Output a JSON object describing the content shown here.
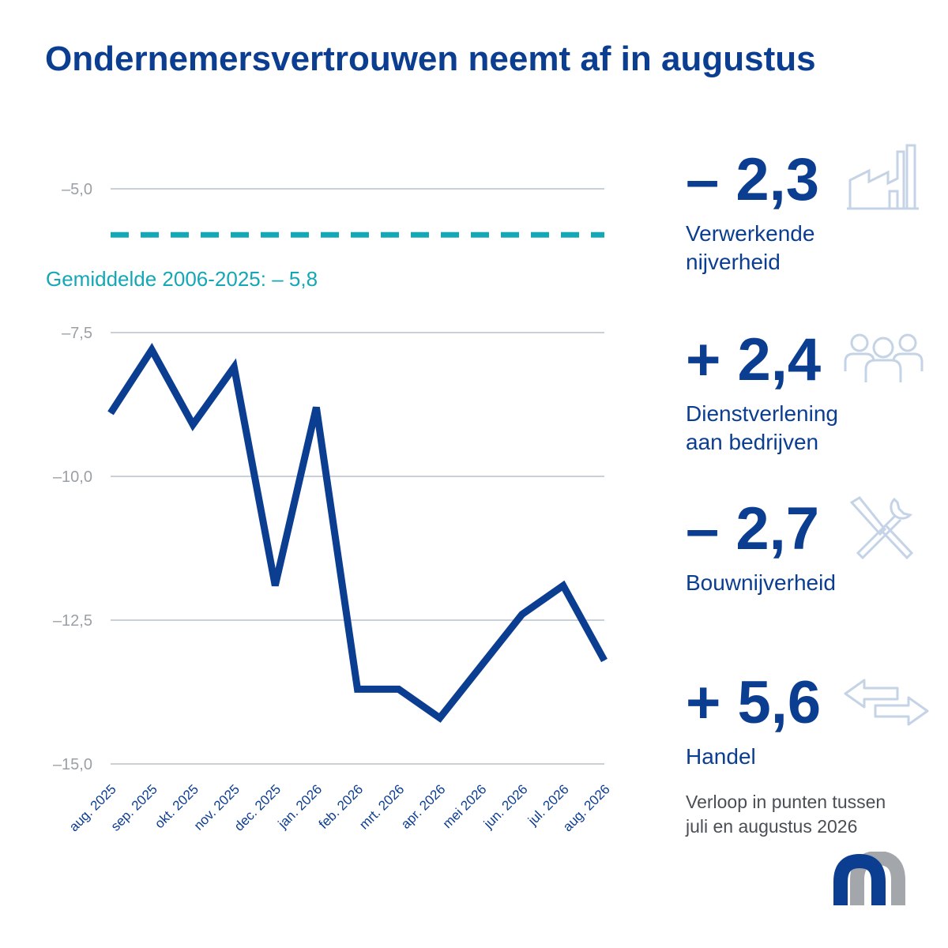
{
  "title": "Ondernemersvertrouwen neemt af in augustus",
  "colors": {
    "line": "#0b3d91",
    "average": "#14a7b6",
    "grid": "#c9d0d8",
    "icon": "#c5d3e6",
    "logo_blue": "#0b3d91",
    "logo_gray": "#a3a6aa"
  },
  "average": {
    "label": "Gemiddelde 2006-2025: – 5,8",
    "value": -5.8
  },
  "kpis": [
    {
      "value": "– 2,3",
      "label_lines": [
        "Verwerkende",
        "nijverheid"
      ],
      "icon": "factory-icon"
    },
    {
      "value": "+ 2,4",
      "label_lines": [
        "Dienstverlening",
        "aan bedrijven"
      ],
      "icon": "people-icon"
    },
    {
      "value": "– 2,7",
      "label_lines": [
        "Bouwnijverheid"
      ],
      "icon": "tools-icon"
    },
    {
      "value": "+ 5,6",
      "label_lines": [
        "Handel"
      ],
      "icon": "arrows-icon"
    }
  ],
  "footnote_lines": [
    "Verloop in punten tussen",
    "juli en augustus 2026"
  ],
  "chart_data": {
    "type": "line",
    "categories": [
      "aug. 2025",
      "sep. 2025",
      "okt. 2025",
      "nov. 2025",
      "dec. 2025",
      "jan. 2026",
      "feb. 2026",
      "mrt. 2026",
      "apr. 2026",
      "mei 2026",
      "jun. 2026",
      "jul. 2026",
      "aug. 2026"
    ],
    "series": [
      {
        "values": [
          -8.9,
          -7.8,
          -9.1,
          -8.1,
          -11.9,
          -8.8,
          -13.7,
          -13.7,
          -14.2,
          -13.3,
          -12.4,
          -11.9,
          -13.2
        ]
      }
    ],
    "yticks": [
      -5.0,
      -7.5,
      -10.0,
      -12.5,
      -15.0
    ],
    "ytick_labels": [
      "–5,0",
      "–7,5",
      "–10,0",
      "–12,5",
      "–15,0"
    ],
    "ylim": [
      -15.0,
      -5.0
    ],
    "reference_line": {
      "value": -5.8,
      "style": "dashed"
    },
    "grid": true,
    "title": "",
    "xlabel": "",
    "ylabel": ""
  }
}
